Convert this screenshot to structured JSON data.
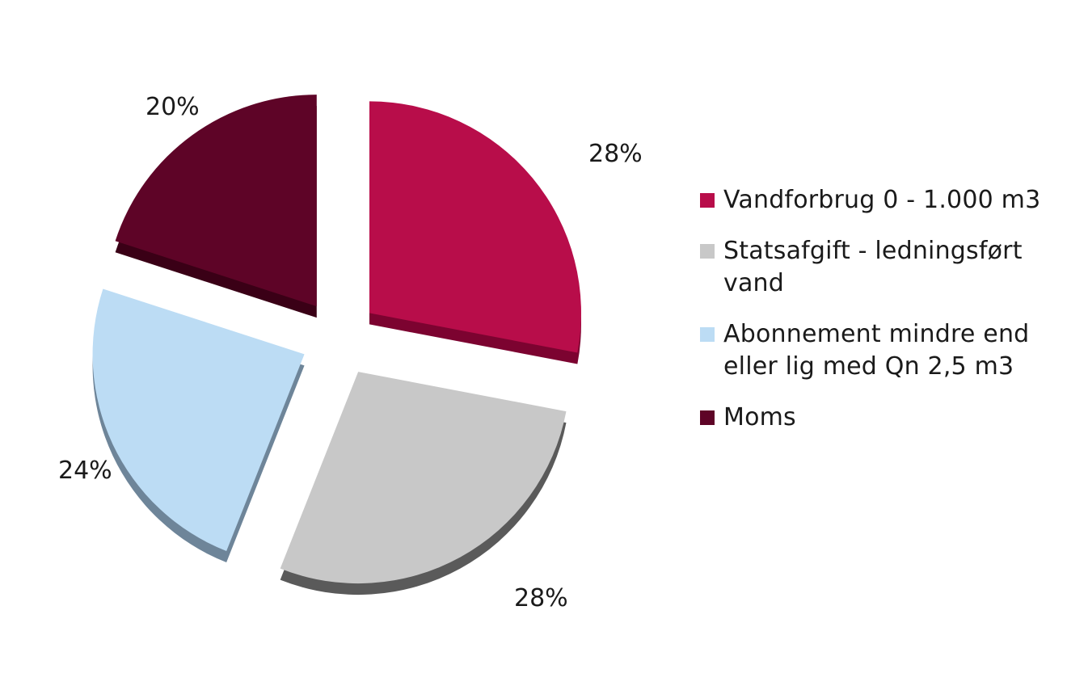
{
  "chart_data": {
    "type": "pie",
    "title": "",
    "style": "3d-exploded",
    "categories": [
      "Vandforbrug 0 - 1.000 m3",
      "Statsafgift - ledningsført vand",
      "Abonnement mindre end eller lig med Qn 2,5 m3",
      "Moms"
    ],
    "values": [
      28,
      28,
      24,
      20
    ],
    "labels": [
      "28%",
      "28%",
      "24%",
      "20%"
    ],
    "colors": [
      "#b80d4a",
      "#c8c8c8",
      "#bcdcf4",
      "#5e0427"
    ],
    "side_colors": [
      "#7c0330",
      "#5a5a5a",
      "#6e8599",
      "#3a0016"
    ],
    "legend_position": "right"
  },
  "legend": {
    "items": [
      {
        "label": "Vandforbrug 0 - 1.000 m3",
        "color": "#b80d4a"
      },
      {
        "label": "Statsafgift - ledningsført vand",
        "color": "#c8c8c8"
      },
      {
        "label": "Abonnement mindre end eller lig med Qn 2,5 m3",
        "color": "#bcdcf4"
      },
      {
        "label": "Moms",
        "color": "#5e0427"
      }
    ]
  }
}
